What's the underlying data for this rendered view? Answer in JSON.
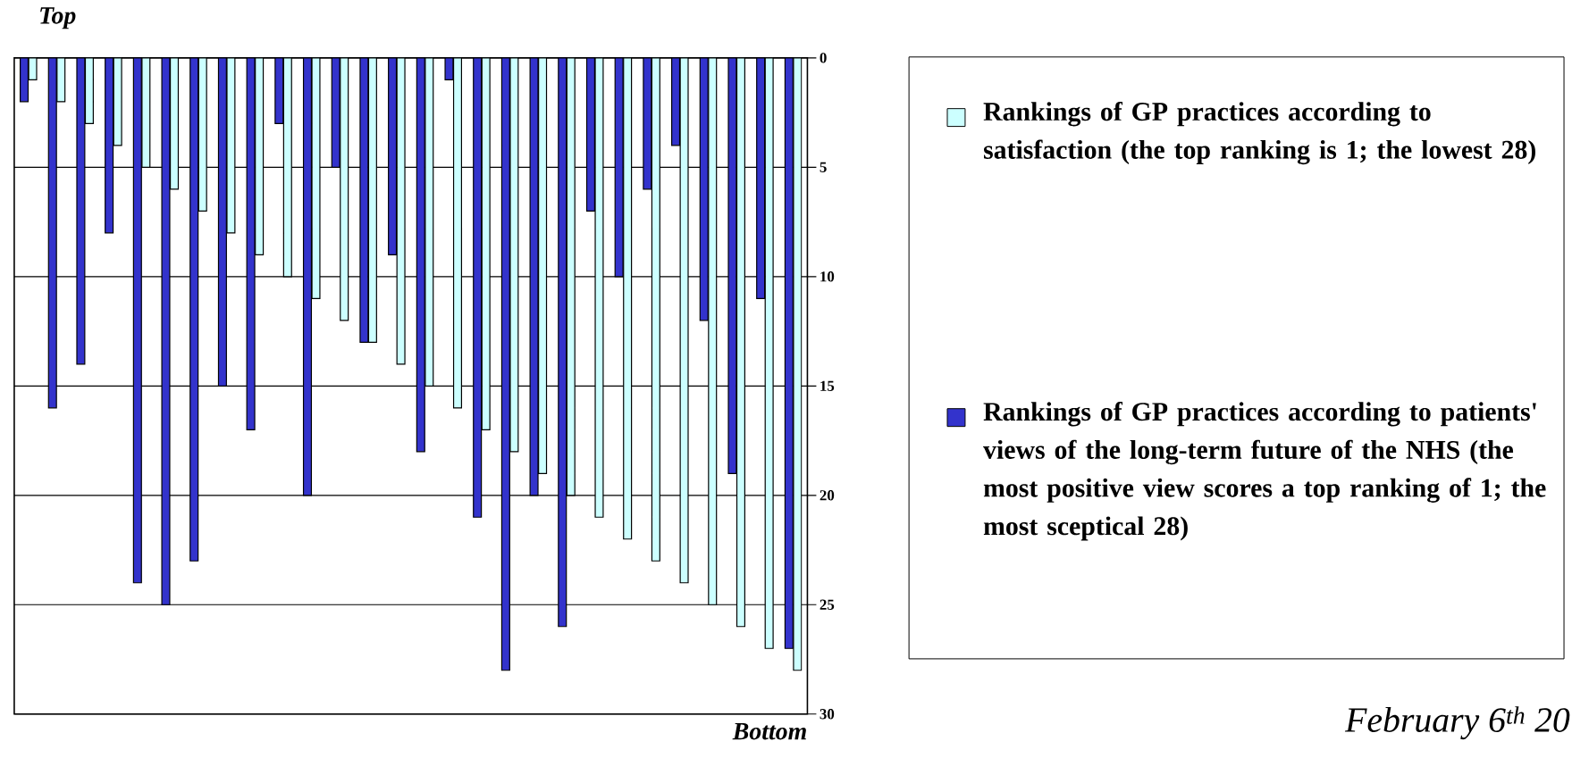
{
  "chart_data": {
    "type": "bar",
    "categories": [
      null,
      null,
      null,
      null,
      null,
      null,
      null,
      null,
      null,
      null,
      null,
      null,
      null,
      null,
      null,
      null,
      null,
      null,
      null,
      null,
      null,
      null,
      null,
      null,
      null,
      null,
      null,
      null
    ],
    "series": [
      {
        "name": "Rankings of GP practices according to satisfaction (the top ranking is 1; the lowest 28)",
        "color": "#ccffff",
        "values": [
          1,
          2,
          3,
          4,
          5,
          6,
          7,
          8,
          9,
          10,
          11,
          12,
          13,
          14,
          15,
          16,
          17,
          18,
          19,
          20,
          21,
          22,
          23,
          24,
          25,
          26,
          27,
          28
        ]
      },
      {
        "name": "Rankings of GP practices according to patients' views of the long-term future of the NHS (the most positive view scores a top ranking of 1; the most sceptical 28)",
        "color": "#3333cc",
        "values": [
          2,
          16,
          14,
          8,
          24,
          25,
          23,
          15,
          17,
          3,
          20,
          5,
          13,
          9,
          18,
          1,
          21,
          28,
          20,
          26,
          7,
          10,
          6,
          4,
          12,
          19,
          11,
          27
        ]
      }
    ],
    "ylim": [
      30,
      0
    ],
    "yticks": [
      0,
      5,
      10,
      15,
      20,
      25,
      30
    ],
    "grid": "y",
    "legend": "right",
    "tick_labels": "y",
    "annotations": [
      "Top",
      "Bottom",
      "February 6$^{th}$ 20"
    ]
  }
}
